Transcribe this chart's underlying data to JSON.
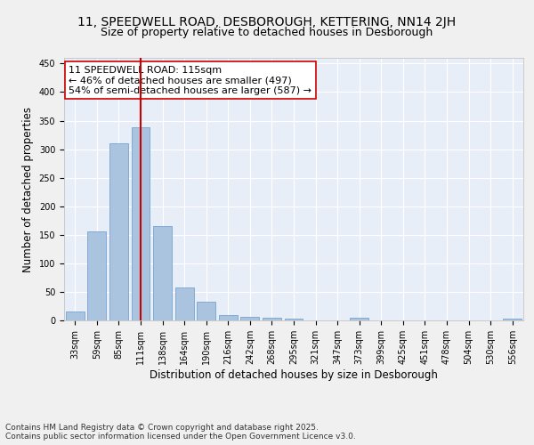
{
  "title_line1": "11, SPEEDWELL ROAD, DESBOROUGH, KETTERING, NN14 2JH",
  "title_line2": "Size of property relative to detached houses in Desborough",
  "xlabel": "Distribution of detached houses by size in Desborough",
  "ylabel": "Number of detached properties",
  "categories": [
    "33sqm",
    "59sqm",
    "85sqm",
    "111sqm",
    "138sqm",
    "164sqm",
    "190sqm",
    "216sqm",
    "242sqm",
    "268sqm",
    "295sqm",
    "321sqm",
    "347sqm",
    "373sqm",
    "399sqm",
    "425sqm",
    "451sqm",
    "478sqm",
    "504sqm",
    "530sqm",
    "556sqm"
  ],
  "values": [
    15,
    156,
    310,
    338,
    165,
    57,
    32,
    9,
    7,
    5,
    3,
    0,
    0,
    5,
    0,
    0,
    0,
    0,
    0,
    0,
    3
  ],
  "bar_color": "#aac4e0",
  "bar_edge_color": "#6699cc",
  "vline_x_index": 3,
  "vline_color": "#cc0000",
  "annotation_text": "11 SPEEDWELL ROAD: 115sqm\n← 46% of detached houses are smaller (497)\n54% of semi-detached houses are larger (587) →",
  "annotation_box_color": "#ffffff",
  "annotation_box_edge": "#cc0000",
  "ylim": [
    0,
    460
  ],
  "yticks": [
    0,
    50,
    100,
    150,
    200,
    250,
    300,
    350,
    400,
    450
  ],
  "background_color": "#e8eef8",
  "grid_color": "#ffffff",
  "footer_text": "Contains HM Land Registry data © Crown copyright and database right 2025.\nContains public sector information licensed under the Open Government Licence v3.0.",
  "title_fontsize": 10,
  "subtitle_fontsize": 9,
  "axis_label_fontsize": 8.5,
  "tick_fontsize": 7,
  "annotation_fontsize": 8,
  "fig_bg": "#f0f0f0"
}
